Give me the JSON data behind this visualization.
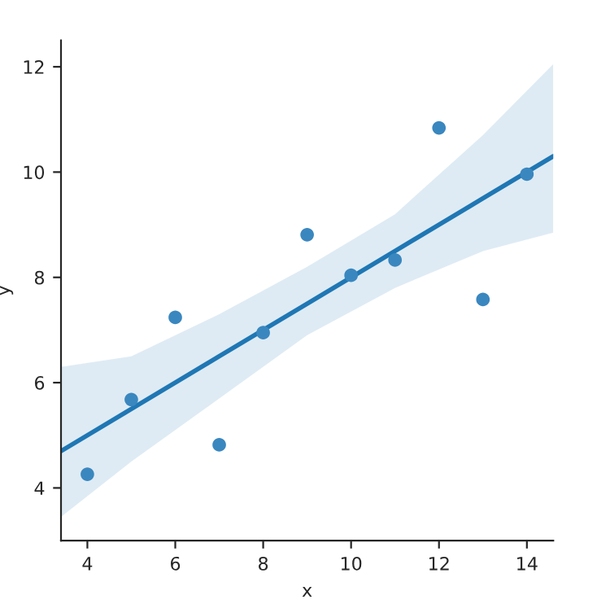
{
  "chart_data": {
    "type": "scatter",
    "xlabel": "x",
    "ylabel": "y",
    "xlim": [
      3.4,
      14.6
    ],
    "ylim": [
      3.0,
      12.5
    ],
    "xticks": [
      4,
      6,
      8,
      10,
      12,
      14
    ],
    "yticks": [
      4,
      6,
      8,
      10,
      12
    ],
    "grid": false,
    "series": [
      {
        "marker": "circle",
        "color": "#3a87bf",
        "x": [
          10,
          8,
          13,
          9,
          11,
          14,
          6,
          4,
          12,
          7,
          5
        ],
        "values": [
          8.04,
          6.95,
          7.58,
          8.81,
          8.33,
          9.96,
          7.24,
          4.26,
          10.84,
          4.82,
          5.68
        ]
      },
      {
        "type": "line",
        "marker": "none",
        "color": "#1f77b4",
        "x": [
          3.4,
          5,
          7,
          9,
          11,
          13,
          14.6
        ],
        "values": [
          4.7,
          5.5,
          6.5,
          7.5,
          8.5,
          9.5,
          10.3
        ],
        "lower": [
          3.45,
          4.5,
          5.7,
          6.9,
          7.8,
          8.5,
          8.85
        ],
        "upper": [
          6.3,
          6.5,
          7.3,
          8.2,
          9.2,
          10.7,
          12.05
        ]
      }
    ]
  }
}
